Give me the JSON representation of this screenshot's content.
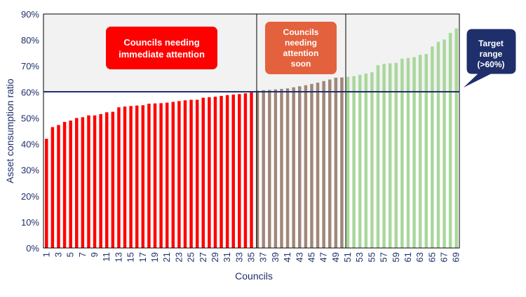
{
  "chart_data": {
    "type": "bar",
    "xlabel": "Councils",
    "ylabel": "Asset consumption ratio",
    "ylim": [
      0,
      90
    ],
    "y_ticks": [
      "0%",
      "10%",
      "20%",
      "30%",
      "40%",
      "50%",
      "60%",
      "70%",
      "80%",
      "90%"
    ],
    "x_tick_labels": [
      "1",
      "3",
      "5",
      "7",
      "9",
      "11",
      "13",
      "15",
      "17",
      "19",
      "21",
      "23",
      "25",
      "27",
      "29",
      "31",
      "33",
      "35",
      "37",
      "39",
      "41",
      "43",
      "45",
      "47",
      "49",
      "51",
      "53",
      "55",
      "57",
      "59",
      "61",
      "63",
      "65",
      "67",
      "69"
    ],
    "categories": [
      "1",
      "2",
      "3",
      "4",
      "5",
      "6",
      "7",
      "8",
      "9",
      "10",
      "11",
      "12",
      "13",
      "14",
      "15",
      "16",
      "17",
      "18",
      "19",
      "20",
      "21",
      "22",
      "23",
      "24",
      "25",
      "26",
      "27",
      "28",
      "29",
      "30",
      "31",
      "32",
      "33",
      "34",
      "35",
      "36",
      "37",
      "38",
      "39",
      "40",
      "41",
      "42",
      "43",
      "44",
      "45",
      "46",
      "47",
      "48",
      "49",
      "50",
      "51",
      "52",
      "53",
      "54",
      "55",
      "56",
      "57",
      "58",
      "59",
      "60",
      "61",
      "62",
      "63",
      "64",
      "65",
      "66",
      "67",
      "68",
      "69"
    ],
    "values": [
      42,
      46.5,
      47.3,
      48.5,
      49,
      50,
      50.3,
      51,
      51,
      51.5,
      52.2,
      52.4,
      54.1,
      54.4,
      54.6,
      54.8,
      54.9,
      55.5,
      55.6,
      55.7,
      55.9,
      56.2,
      56.5,
      56.8,
      57,
      57,
      57.8,
      58,
      58.2,
      58.5,
      58.8,
      59,
      59.2,
      59.5,
      59.8,
      60.5,
      60.7,
      60.8,
      61,
      61.2,
      61.4,
      61.8,
      62.2,
      62.6,
      63.1,
      63.6,
      64.2,
      64.8,
      65.5,
      65.6,
      65.8,
      66.1,
      66.6,
      67.1,
      67.6,
      70.3,
      70.8,
      71,
      71.2,
      72.8,
      73.1,
      73.4,
      74.3,
      74.6,
      77.5,
      79.3,
      80.2,
      82.7,
      84.5
    ],
    "target_value": 60,
    "groups": [
      {
        "label": "Councils needing immediate attention",
        "from": 1,
        "to": 35,
        "color": "#ff0000"
      },
      {
        "label": "Councils needing attention soon",
        "from": 36,
        "to": 50,
        "color": "#a08779"
      },
      {
        "label": "Target range (>60%)",
        "from": 51,
        "to": 69,
        "color": "#a9d79b"
      }
    ],
    "annotations": {
      "immediate": "Councils needing\nimmediate attention",
      "soon": "Councils\nneeding\nattention\nsoon",
      "target": "Target\nrange\n(>60%)"
    },
    "colors": {
      "immediate_bars": "#ff0000",
      "soon_bars": "#a08779",
      "target_bars": "#a9d79b",
      "target_line": "#1f2f6b",
      "upper_zone_bg": "#f2f2f2"
    }
  }
}
